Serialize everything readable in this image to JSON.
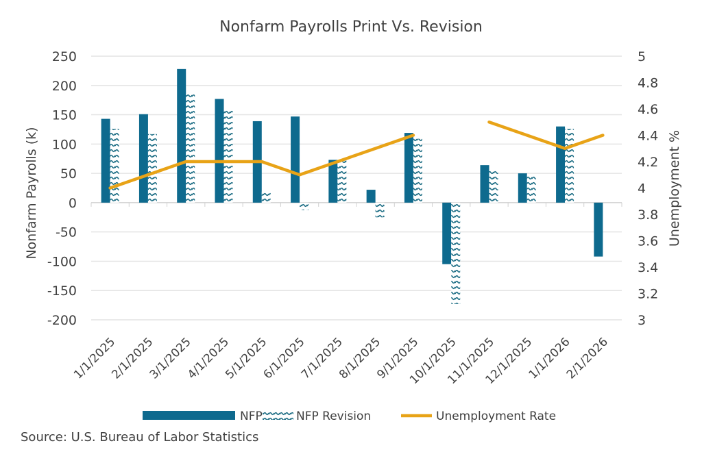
{
  "chart_data": {
    "type": "bar",
    "title": "Nonfarm Payrolls Print Vs. Revision",
    "ylabel": "Nonfarm Payrolls (k)",
    "y2label": "Unemployment  %",
    "ylim": [
      -200,
      250
    ],
    "y2lim": [
      3,
      5
    ],
    "yticks": [
      250,
      200,
      150,
      100,
      50,
      0,
      -50,
      -100,
      -150,
      -200
    ],
    "y2ticks": [
      "5",
      "4.8",
      "4.6",
      "4.4",
      "4.2",
      "4",
      "3.8",
      "3.6",
      "3.4",
      "3.2",
      "3"
    ],
    "grid": true,
    "legend_position": "bottom",
    "categories": [
      "1/1/2025",
      "2/1/2025",
      "3/1/2025",
      "4/1/2025",
      "5/1/2025",
      "6/1/2025",
      "7/1/2025",
      "8/1/2025",
      "9/1/2025",
      "10/1/2025",
      "11/1/2025",
      "12/1/2025",
      "1/1/2026",
      "2/1/2026"
    ],
    "series": [
      {
        "name": "NFP Print",
        "type": "bar",
        "color": "#0e6a8e",
        "values": [
          143,
          151,
          228,
          177,
          139,
          147,
          73,
          22,
          119,
          -105,
          64,
          50,
          130,
          -92
        ]
      },
      {
        "name": "NFP Revision",
        "type": "bar",
        "pattern": "wave",
        "color": "#1f6f86",
        "values": [
          126,
          117,
          185,
          159,
          19,
          -13,
          72,
          -25,
          109,
          -173,
          55,
          48,
          126,
          null
        ]
      },
      {
        "name": "Unemployment Rate",
        "type": "line",
        "axis": "right",
        "color": "#e8a317",
        "values": [
          4.0,
          4.1,
          4.2,
          4.2,
          4.2,
          4.1,
          4.2,
          4.3,
          4.4,
          null,
          4.5,
          4.4,
          4.3,
          4.4
        ]
      }
    ]
  },
  "source": "Source: U.S. Bureau of Labor Statistics"
}
